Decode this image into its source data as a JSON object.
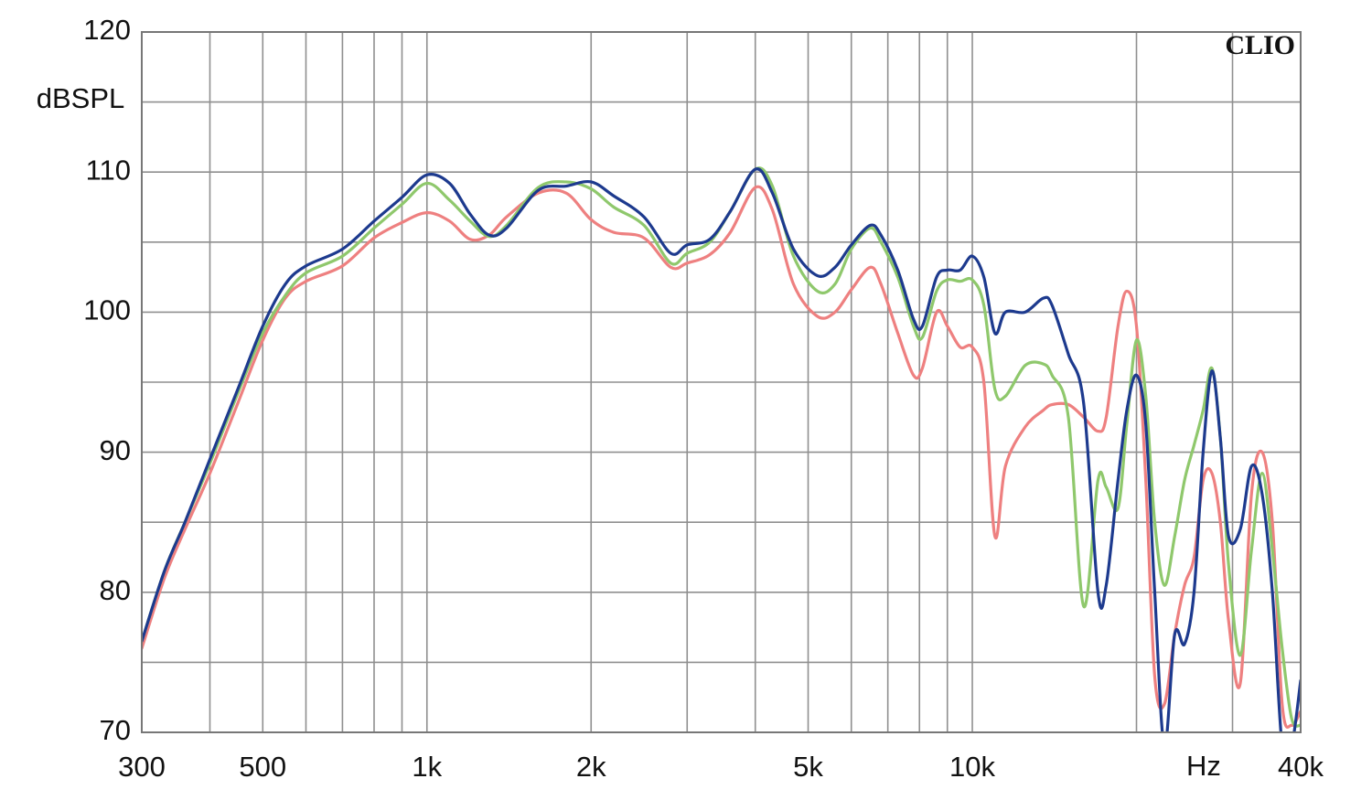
{
  "chart_data": {
    "type": "line",
    "xscale": "log",
    "grid": true,
    "watermark": "CLIO",
    "ylabel": "dBSPL",
    "xlabel": "Hz",
    "xlim": [
      300,
      40000
    ],
    "ylim": [
      70,
      120
    ],
    "xticks": [
      300,
      500,
      {
        "value": 1000,
        "label": "1k"
      },
      {
        "value": 2000,
        "label": "2k"
      },
      {
        "value": 5000,
        "label": "5k"
      },
      {
        "value": 10000,
        "label": "10k"
      },
      {
        "value": 40000,
        "label": "40k"
      }
    ],
    "xminor": [
      400,
      600,
      700,
      800,
      900,
      3000,
      4000,
      6000,
      7000,
      8000,
      9000,
      20000,
      30000
    ],
    "yticks": [
      70,
      80,
      90,
      100,
      110,
      120
    ],
    "yminor": [
      75,
      85,
      95,
      105,
      115
    ],
    "x": [
      300,
      330,
      360,
      400,
      450,
      500,
      550,
      600,
      700,
      800,
      900,
      1000,
      1100,
      1200,
      1300,
      1400,
      1600,
      1800,
      2000,
      2200,
      2500,
      2800,
      3000,
      3300,
      3600,
      4000,
      4300,
      4700,
      5200,
      5600,
      6000,
      6500,
      6800,
      7300,
      7800,
      8100,
      8600,
      9000,
      9500,
      10000,
      10500,
      11000,
      11500,
      12500,
      13500,
      14000,
      15000,
      16000,
      17000,
      17600,
      18500,
      19200,
      20000,
      20800,
      21600,
      22500,
      23500,
      24500,
      25500,
      26500,
      27500,
      28500,
      29500,
      31000,
      32500,
      34000,
      35500,
      37000,
      38500,
      40000
    ],
    "series": [
      {
        "color": "#ee8080",
        "values": [
          76,
          81,
          84.5,
          88.5,
          93.5,
          98,
          101,
          102.2,
          103.3,
          105.3,
          106.4,
          107.1,
          106.5,
          105.2,
          105.5,
          106.8,
          108.5,
          108.5,
          106.6,
          105.7,
          105.3,
          103.2,
          103.5,
          104.1,
          105.7,
          108.9,
          107.3,
          102,
          99.7,
          100,
          101.6,
          103.2,
          102,
          98.5,
          95.5,
          96,
          100,
          99,
          97.5,
          97.5,
          95,
          84,
          89,
          91.8,
          93,
          93.4,
          93.4,
          92.5,
          91.5,
          92.5,
          99,
          101.5,
          99,
          88,
          74,
          72,
          77,
          80.5,
          82.5,
          88,
          88.5,
          85,
          78,
          73.5,
          87,
          90,
          85,
          72,
          70.5,
          71.5
        ]
      },
      {
        "color": "#8fc86c",
        "values": [
          76.5,
          81.5,
          85,
          89.2,
          94.2,
          98.5,
          101.2,
          102.8,
          104,
          106,
          107.7,
          109.2,
          108,
          106.5,
          105.4,
          106.2,
          108.9,
          109.3,
          108.8,
          107.5,
          106.2,
          103.5,
          104.2,
          105,
          107.2,
          110.2,
          109,
          104,
          101.5,
          102,
          104.5,
          106,
          105,
          102.5,
          99,
          98.2,
          101.5,
          102.3,
          102.2,
          102.3,
          100.5,
          94.5,
          94,
          96.2,
          96.3,
          95.5,
          92.5,
          79,
          88,
          87.5,
          86,
          92,
          98,
          94,
          85,
          80.5,
          84,
          88,
          90.5,
          93,
          96,
          91,
          82,
          75.5,
          83,
          88.5,
          83,
          76,
          71,
          70.5
        ]
      },
      {
        "color": "#1d3a8e",
        "values": [
          76.5,
          81.5,
          85,
          89.5,
          94.5,
          99,
          102,
          103.3,
          104.5,
          106.5,
          108.2,
          109.8,
          109.2,
          107,
          105.5,
          106,
          108.7,
          109,
          109.3,
          108.3,
          106.8,
          104.2,
          104.8,
          105.2,
          107.2,
          110.2,
          108.5,
          104.5,
          102.6,
          103.2,
          104.8,
          106.2,
          105.5,
          103,
          99.5,
          99,
          102.5,
          103,
          103,
          104,
          102.5,
          98.5,
          100,
          100,
          101,
          100.5,
          97,
          93.5,
          80,
          80.5,
          88,
          93,
          95.5,
          92,
          80,
          69,
          77,
          76.3,
          80,
          90,
          95.8,
          91,
          84,
          84.5,
          89,
          87,
          80,
          69,
          69,
          73.7
        ]
      }
    ]
  }
}
